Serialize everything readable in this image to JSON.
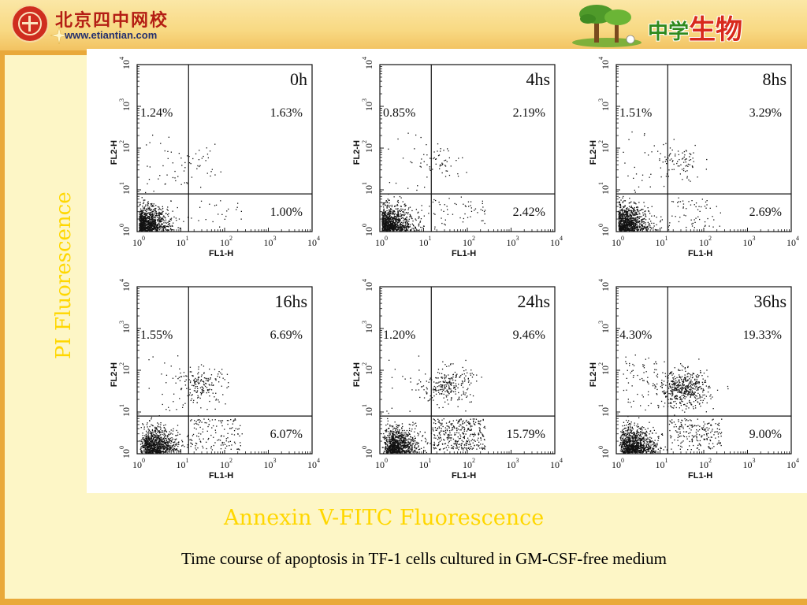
{
  "header": {
    "school_name": "北京四中网校",
    "school_url": "www.etiantian.com",
    "subject_prefix": "中学",
    "subject_main": "生物"
  },
  "colors": {
    "background": "#fdf6c6",
    "header_band": "#f8d983",
    "accent_band": "#e9a93a",
    "axis_label_yellow": "#ffd700",
    "dots": "#111111"
  },
  "y_side_label": "PI Fluorescence",
  "x_side_label": "Annexin V-FITC Fluorescence",
  "caption": "Time course of apoptosis in TF-1 cells cultured in GM-CSF-free medium",
  "chart_data": {
    "type": "scatter",
    "layout_grid": "2 rows x 3 columns",
    "xlabel": "FL1-H",
    "ylabel": "FL2-H",
    "x_scale": "log",
    "y_scale": "log",
    "xlim": [
      1,
      10000
    ],
    "ylim": [
      1,
      10000
    ],
    "x_ticks": [
      "10^0",
      "10^1",
      "10^2",
      "10^3",
      "10^4"
    ],
    "y_ticks": [
      "10^0",
      "10^1",
      "10^2",
      "10^3",
      "10^4"
    ],
    "quadrant_gate_x": 15,
    "quadrant_gate_y": 8,
    "panels": [
      {
        "time": "0h",
        "upper_left": "1.24%",
        "upper_right": "1.63%",
        "lower_right": "1.00%"
      },
      {
        "time": "4hs",
        "upper_left": "0.85%",
        "upper_right": "2.19%",
        "lower_right": "2.42%"
      },
      {
        "time": "8hs",
        "upper_left": "1.51%",
        "upper_right": "3.29%",
        "lower_right": "2.69%"
      },
      {
        "time": "16hs",
        "upper_left": "1.55%",
        "upper_right": "6.69%",
        "lower_right": "6.07%"
      },
      {
        "time": "24hs",
        "upper_left": "1.20%",
        "upper_right": "9.46%",
        "lower_right": "15.79%"
      },
      {
        "time": "36hs",
        "upper_left": "4.30%",
        "upper_right": "19.33%",
        "lower_right": "9.00%"
      }
    ]
  }
}
